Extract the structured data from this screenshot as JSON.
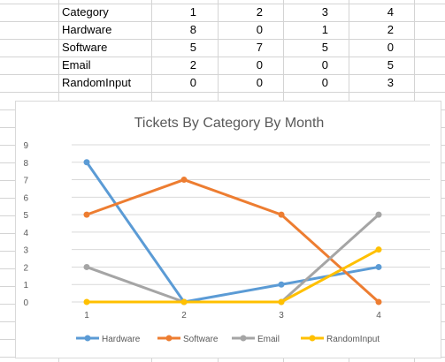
{
  "sheet": {
    "rows": [
      {
        "label": "Category",
        "values": [
          "1",
          "2",
          "3",
          "4"
        ]
      },
      {
        "label": "Hardware",
        "values": [
          "8",
          "0",
          "1",
          "2"
        ]
      },
      {
        "label": "Software",
        "values": [
          "5",
          "7",
          "5",
          "0"
        ]
      },
      {
        "label": "Email",
        "values": [
          "2",
          "0",
          "0",
          "5"
        ]
      },
      {
        "label": "RandomInput",
        "values": [
          "0",
          "0",
          "0",
          "3"
        ]
      }
    ],
    "grid_color": "#d4d4d4"
  },
  "chart_data": {
    "type": "line",
    "title": "Tickets By Category By Month",
    "categories": [
      "1",
      "2",
      "3",
      "4"
    ],
    "series": [
      {
        "name": "Hardware",
        "values": [
          8,
          0,
          1,
          2
        ],
        "color": "#5b9bd5"
      },
      {
        "name": "Software",
        "values": [
          5,
          7,
          5,
          0
        ],
        "color": "#ed7d31"
      },
      {
        "name": "Email",
        "values": [
          2,
          0,
          0,
          5
        ],
        "color": "#a5a5a5"
      },
      {
        "name": "RandomInput",
        "values": [
          0,
          0,
          0,
          3
        ],
        "color": "#ffc000"
      }
    ],
    "ylim": [
      0,
      9
    ],
    "yticks": [
      "0",
      "1",
      "2",
      "3",
      "4",
      "5",
      "6",
      "7",
      "8",
      "9"
    ],
    "grid": true,
    "legend": "bottom"
  }
}
